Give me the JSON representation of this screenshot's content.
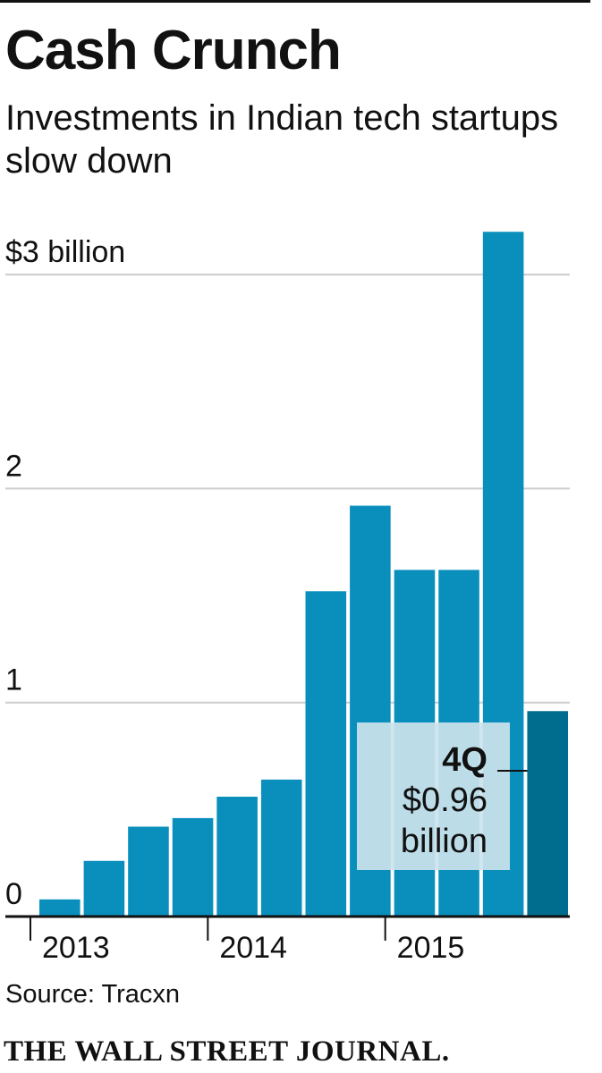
{
  "publisher": "THE WALL STREET JOURNAL.",
  "source": "Source: Tracxn",
  "chart_data": {
    "type": "bar",
    "title": "Cash Crunch",
    "subtitle": "Investments in Indian tech startups slow down",
    "unit": "billion USD",
    "categories": [
      "1Q 2013",
      "2Q 2013",
      "3Q 2013",
      "4Q 2013",
      "1Q 2014",
      "2Q 2014",
      "3Q 2014",
      "4Q 2014",
      "1Q 2015",
      "2Q 2015",
      "3Q 2015",
      "4Q 2015"
    ],
    "values": [
      0.08,
      0.26,
      0.42,
      0.46,
      0.56,
      0.64,
      1.52,
      1.92,
      1.62,
      1.62,
      3.2,
      0.96
    ],
    "ylim": [
      0,
      3.2
    ],
    "yticks": [
      {
        "value": 0,
        "label": "0"
      },
      {
        "value": 1,
        "label": "1"
      },
      {
        "value": 2,
        "label": "2"
      },
      {
        "value": 3,
        "label": "$3 billion"
      }
    ],
    "xgroups": [
      {
        "label": "2013",
        "start": 0
      },
      {
        "label": "2014",
        "start": 4
      },
      {
        "label": "2015",
        "start": 8
      }
    ],
    "highlight_index": 11,
    "annotation": {
      "quarter": "4Q",
      "value_line": "$0.96",
      "unit_line": "billion"
    },
    "colors": {
      "bar": "#0a8fbd",
      "highlight": "#006d8e",
      "grid": "#cccccc",
      "annotation_box": "#cce3ec",
      "text": "#111111"
    }
  }
}
